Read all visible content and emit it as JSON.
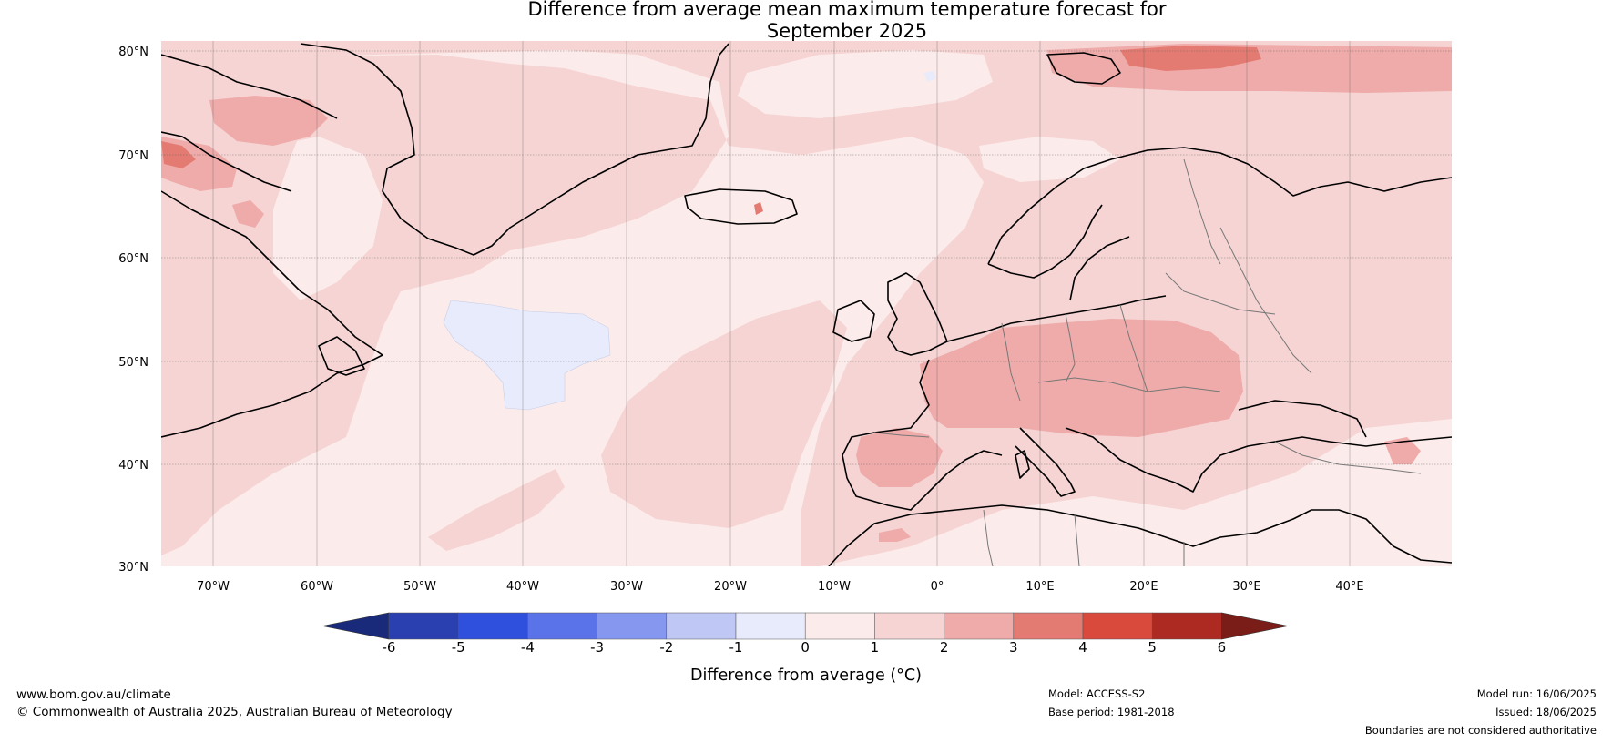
{
  "title": {
    "line1": "Difference from average mean maximum temperature forecast for",
    "line2": "September 2025"
  },
  "map": {
    "lat_labels": [
      "80°N",
      "70°N",
      "60°N",
      "50°N",
      "40°N",
      "30°N"
    ],
    "lon_labels": [
      "70°W",
      "60°W",
      "50°W",
      "40°W",
      "30°W",
      "20°W",
      "10°W",
      "0°",
      "10°E",
      "20°E",
      "30°E",
      "40°E"
    ]
  },
  "colorbar": {
    "label": "Difference from average (°C)",
    "ticks": [
      "-6",
      "-5",
      "-4",
      "-3",
      "-2",
      "-1",
      "0",
      "1",
      "2",
      "3",
      "4",
      "5",
      "6"
    ],
    "colors": [
      "#1a2a7a",
      "#2a3fb0",
      "#2f4fdd",
      "#5b73e8",
      "#8597ee",
      "#bfc7f5",
      "#e7ebfb",
      "#fbebea",
      "#f5d4d3",
      "#eeabaa",
      "#e47b73",
      "#d94a3d",
      "#ad2a22",
      "#7a1c18"
    ]
  },
  "footer": {
    "site": "www.bom.gov.au/climate",
    "copyright": "© Commonwealth of Australia 2025, Australian Bureau of Meteorology",
    "model": "Model: ACCESS-S2",
    "base_period": "Base period: 1981-2018",
    "model_run": "Model run: 16/06/2025",
    "issued": "Issued: 18/06/2025",
    "disclaimer": "Boundaries are not considered authoritative"
  }
}
